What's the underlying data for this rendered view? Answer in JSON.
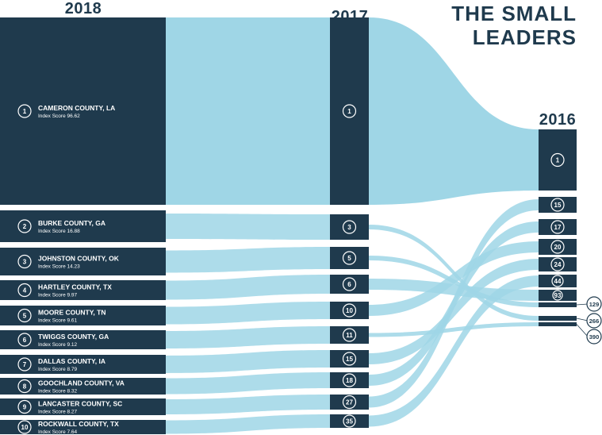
{
  "title_line1": "THE SMALL",
  "title_line2": "LEADERS",
  "columns": {
    "y2018": "2018",
    "y2017": "2017",
    "y2016": "2016"
  },
  "counties": [
    {
      "rank_2018": "1",
      "name": "CAMERON COUNTY, LA",
      "score": "Index Score 96.62",
      "rank_2017": "1",
      "rank_2016": "1"
    },
    {
      "rank_2018": "2",
      "name": "BURKE COUNTY, GA",
      "score": "Index Score 16.88",
      "rank_2017": "3",
      "rank_2016": "266"
    },
    {
      "rank_2018": "3",
      "name": "JOHNSTON COUNTY, OK",
      "score": "Index Score 14.23",
      "rank_2017": "5",
      "rank_2016": "129"
    },
    {
      "rank_2018": "4",
      "name": "HARTLEY COUNTY, TX",
      "score": "Index Score 9.97",
      "rank_2017": "6",
      "rank_2016": "93"
    },
    {
      "rank_2018": "5",
      "name": "MOORE COUNTY, TN",
      "score": "Index Score 9.61",
      "rank_2017": "10",
      "rank_2016": "20"
    },
    {
      "rank_2018": "6",
      "name": "TWIGGS COUNTY, GA",
      "score": "Index Score 9.12",
      "rank_2017": "11",
      "rank_2016": "390"
    },
    {
      "rank_2018": "7",
      "name": "DALLAS COUNTY, IA",
      "score": "Index Score 8.79",
      "rank_2017": "15",
      "rank_2016": "24"
    },
    {
      "rank_2018": "8",
      "name": "GOOCHLAND COUNTY, VA",
      "score": "Index Score 8.32",
      "rank_2017": "18",
      "rank_2016": "17"
    },
    {
      "rank_2018": "9",
      "name": "LANCASTER COUNTY, SC",
      "score": "Index Score 8.27",
      "rank_2017": "27",
      "rank_2016": "15"
    },
    {
      "rank_2018": "10",
      "name": "ROCKWALL COUNTY, TX",
      "score": "Index Score 7.64",
      "rank_2017": "35",
      "rank_2016": "44"
    }
  ],
  "ranks_2017_order": [
    "1",
    "3",
    "5",
    "6",
    "10",
    "11",
    "15",
    "18",
    "27",
    "35"
  ],
  "ranks_2016_order": [
    "1",
    "15",
    "17",
    "20",
    "24",
    "44",
    "93",
    "129",
    "266",
    "390"
  ],
  "colors": {
    "dark": "#1f3a4d",
    "flow": "#9fd6e6",
    "white": "#ffffff"
  }
}
